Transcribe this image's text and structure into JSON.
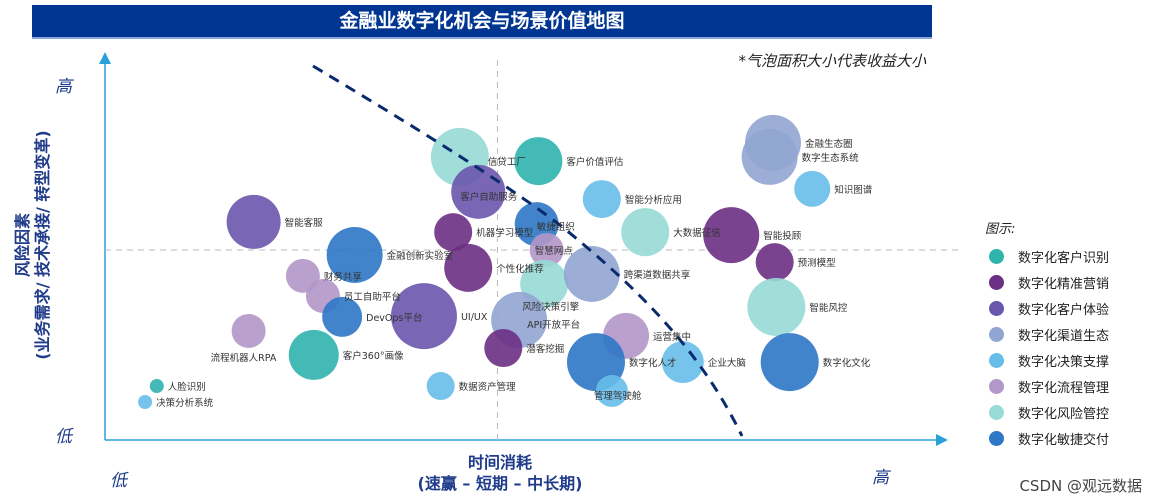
{
  "title": "金融业数字化机会与场景价值地图",
  "note": "*气泡面积大小代表收益大小",
  "watermark": "CSDN @观远数据",
  "chart_data": {
    "type": "scatter",
    "subtype": "bubble",
    "title": "金融业数字化机会与场景价值地图",
    "xlabel": "时间消耗",
    "xlabel_sub": "(速赢 – 短期 – 中长期)",
    "ylabel": "风险因素",
    "ylabel_sub": "(业务需求/ 技术承接/ 转型变革)",
    "x_low": "低",
    "x_high": "高",
    "y_low": "低",
    "y_high": "高",
    "xlim": [
      0,
      100
    ],
    "ylim": [
      0,
      100
    ],
    "quadrant_lines": {
      "x": 47,
      "y": 50
    },
    "grid": false,
    "legend_title": "图示:",
    "legend_placement": "right",
    "categories": [
      {
        "name": "数字化客户识别",
        "color": "#2fb3ad"
      },
      {
        "name": "数字化精准营销",
        "color": "#6b2f84"
      },
      {
        "name": "数字化客户体验",
        "color": "#6a57ad"
      },
      {
        "name": "数字化渠道生态",
        "color": "#91a5d2"
      },
      {
        "name": "数字化决策支撑",
        "color": "#67bdea"
      },
      {
        "name": "数字化流程管理",
        "color": "#b397c8"
      },
      {
        "name": "数字化风险管控",
        "color": "#97dad6"
      },
      {
        "name": "数字化敏捷交付",
        "color": "#2d77c6"
      }
    ],
    "points": [
      {
        "label": "信贷工厂",
        "x": 42.5,
        "y": 74.5,
        "size": 29,
        "category": 6
      },
      {
        "label": "客户价值评估",
        "x": 51.9,
        "y": 73.4,
        "size": 24,
        "category": 0
      },
      {
        "label": "客户自助服务",
        "x": 44.7,
        "y": 65.3,
        "size": 27,
        "category": 2
      },
      {
        "label": "智能客服",
        "x": 17.8,
        "y": 57.4,
        "size": 27,
        "category": 2
      },
      {
        "label": "金融创新实验室",
        "x": 29.9,
        "y": 48.7,
        "size": 28,
        "category": 7
      },
      {
        "label": "财务共享",
        "x": 23.7,
        "y": 43.2,
        "size": 17,
        "category": 5
      },
      {
        "label": "员工自助平台",
        "x": 26.1,
        "y": 37.9,
        "size": 17,
        "category": 5
      },
      {
        "label": "DevOps平台",
        "x": 28.4,
        "y": 32.4,
        "size": 20,
        "category": 7
      },
      {
        "label": "UI/UX",
        "x": 38.2,
        "y": 32.6,
        "size": 33,
        "category": 2
      },
      {
        "label": "流程机器人RPA",
        "x": 17.2,
        "y": 28.7,
        "size": 17,
        "category": 5
      },
      {
        "label": "客户360°画像",
        "x": 25.0,
        "y": 22.4,
        "size": 25,
        "category": 0
      },
      {
        "label": "人脸识别",
        "x": 6.2,
        "y": 14.2,
        "size": 7,
        "category": 0
      },
      {
        "label": "决策分析系统",
        "x": 4.8,
        "y": 10.0,
        "size": 7,
        "category": 4
      },
      {
        "label": "数据资产管理",
        "x": 40.2,
        "y": 14.2,
        "size": 14,
        "category": 4
      },
      {
        "label": "智能分析应用",
        "x": 59.5,
        "y": 63.4,
        "size": 19,
        "category": 4
      },
      {
        "label": "敏捷组织",
        "x": 51.7,
        "y": 56.8,
        "size": 22,
        "category": 7
      },
      {
        "label": "机器学习模型",
        "x": 41.7,
        "y": 54.7,
        "size": 19,
        "category": 1
      },
      {
        "label": "大数据征信",
        "x": 64.7,
        "y": 54.7,
        "size": 24,
        "category": 6
      },
      {
        "label": "智能投顾",
        "x": 75.0,
        "y": 53.9,
        "size": 28,
        "category": 1
      },
      {
        "label": "金融生态圈",
        "x": 80.0,
        "y": 78.2,
        "size": 28,
        "category": 3
      },
      {
        "label": "数字生态系统",
        "x": 79.6,
        "y": 74.5,
        "size": 28,
        "category": 3
      },
      {
        "label": "知识图谱",
        "x": 84.7,
        "y": 66.1,
        "size": 18,
        "category": 4
      },
      {
        "label": "智慧网点",
        "x": 52.9,
        "y": 50.0,
        "size": 17,
        "category": 5
      },
      {
        "label": "个性化推荐",
        "x": 43.5,
        "y": 45.3,
        "size": 24,
        "category": 1
      },
      {
        "label": "风险决策引擎",
        "x": 52.6,
        "y": 41.1,
        "size": 24,
        "category": 6
      },
      {
        "label": "跨渠道数据共享",
        "x": 58.3,
        "y": 43.7,
        "size": 28,
        "category": 3
      },
      {
        "label": "API开放平台",
        "x": 49.6,
        "y": 31.6,
        "size": 28,
        "category": 3
      },
      {
        "label": "潜客挖掘",
        "x": 47.7,
        "y": 24.2,
        "size": 19,
        "category": 1
      },
      {
        "label": "运营集中",
        "x": 62.4,
        "y": 27.4,
        "size": 23,
        "category": 5
      },
      {
        "label": "数字化人才",
        "x": 58.8,
        "y": 20.5,
        "size": 29,
        "category": 7
      },
      {
        "label": "管理驾驶舱",
        "x": 60.7,
        "y": 12.9,
        "size": 16,
        "category": 4
      },
      {
        "label": "企业大脑",
        "x": 69.2,
        "y": 20.5,
        "size": 21,
        "category": 4
      },
      {
        "label": "预测模型",
        "x": 80.2,
        "y": 46.8,
        "size": 19,
        "category": 1
      },
      {
        "label": "智能风控",
        "x": 80.4,
        "y": 35.0,
        "size": 29,
        "category": 6
      },
      {
        "label": "数字化文化",
        "x": 82.0,
        "y": 20.5,
        "size": 29,
        "category": 7
      }
    ]
  }
}
